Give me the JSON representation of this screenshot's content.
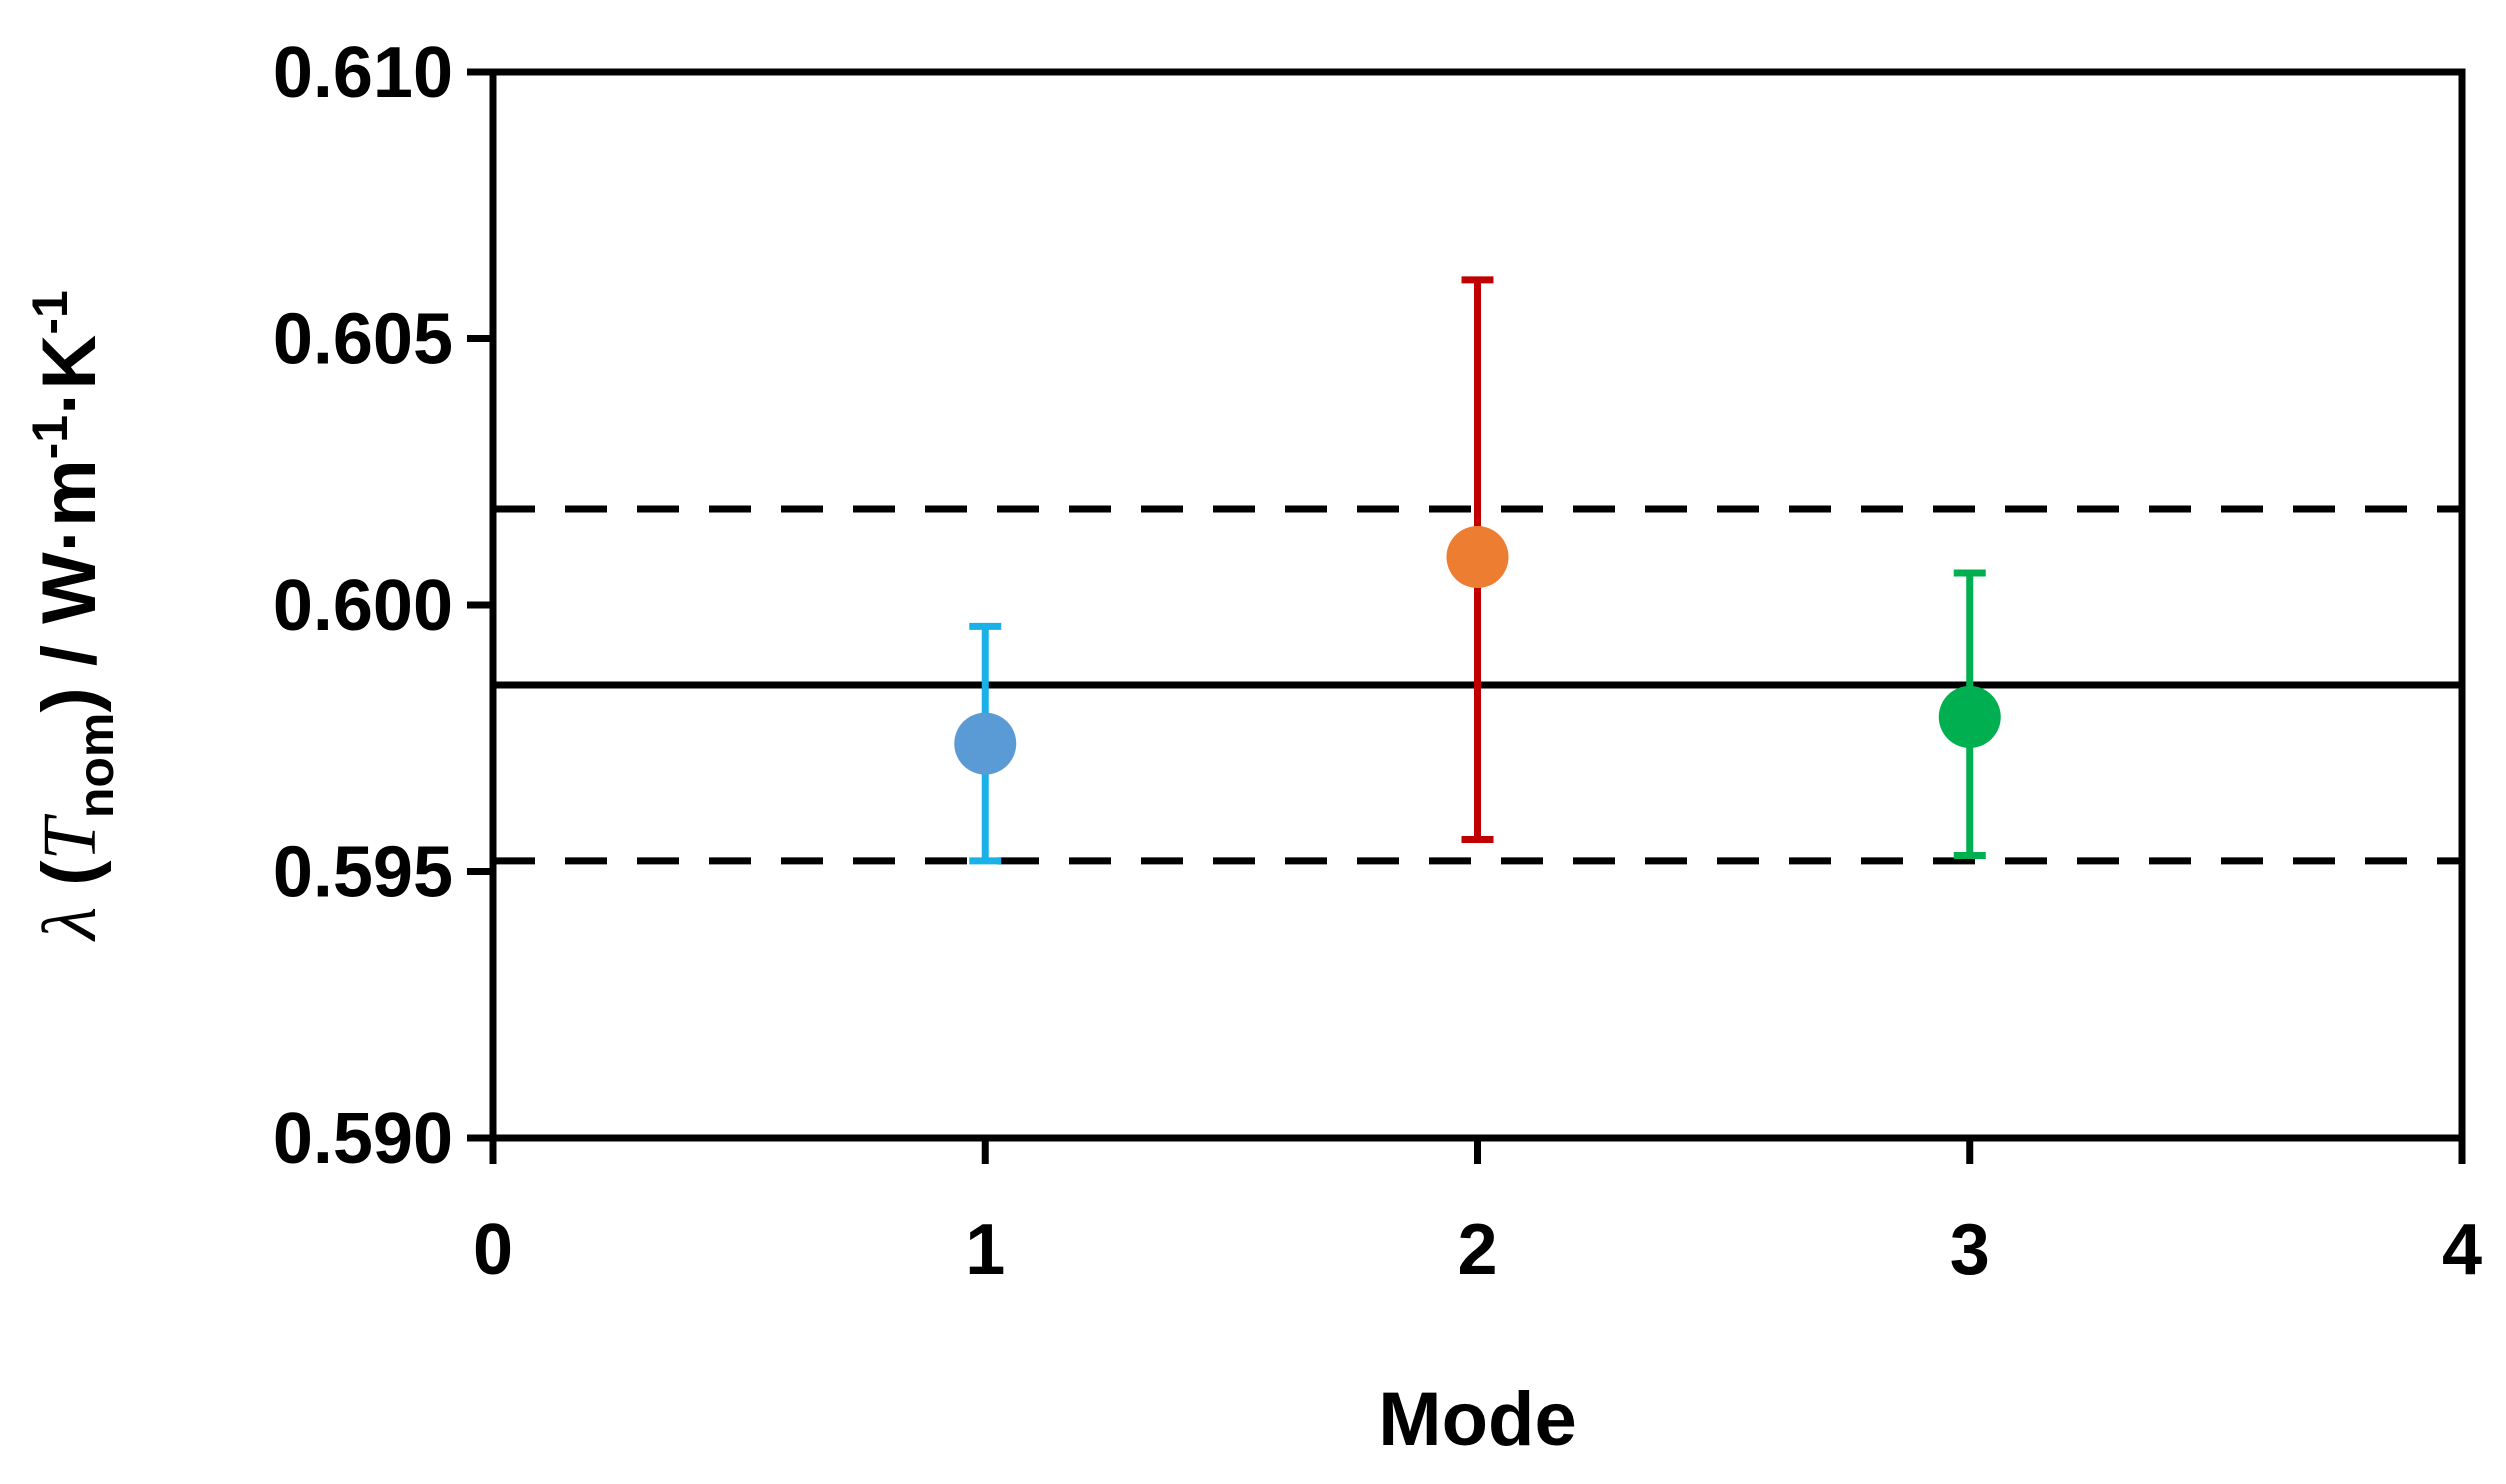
{
  "chart_data": {
    "type": "scatter",
    "title": "",
    "xlabel": "Mode",
    "ylabel": {
      "symbol": "λ",
      "open": " (",
      "var": "T",
      "sub": "nom",
      "close": ")",
      "unit_a": " / W·m",
      "exp_a": "-1",
      "unit_b": "·K",
      "exp_b": "-1"
    },
    "xlim": [
      0,
      4
    ],
    "ylim": [
      0.59,
      0.61
    ],
    "x_ticks": [
      "0",
      "1",
      "2",
      "3",
      "4"
    ],
    "y_ticks": [
      "0.590",
      "0.595",
      "0.600",
      "0.605",
      "0.610"
    ],
    "points": [
      {
        "x": 1,
        "y": 0.5974,
        "err_low": 0.5952,
        "err_high": 0.5996,
        "color": "#5b9bd5",
        "err_color": "#1ab0e8"
      },
      {
        "x": 2,
        "y": 0.6009,
        "err_low": 0.5956,
        "err_high": 0.6061,
        "color": "#ed7d31",
        "err_color": "#c00000"
      },
      {
        "x": 3,
        "y": 0.5979,
        "err_low": 0.5953,
        "err_high": 0.6006,
        "color": "#00b050",
        "err_color": "#00b050"
      }
    ],
    "reference_lines": [
      {
        "y": 0.5985,
        "style": "solid"
      },
      {
        "y": 0.6018,
        "style": "dashed"
      },
      {
        "y": 0.5952,
        "style": "dashed"
      }
    ],
    "grid": false,
    "legend": "none"
  }
}
